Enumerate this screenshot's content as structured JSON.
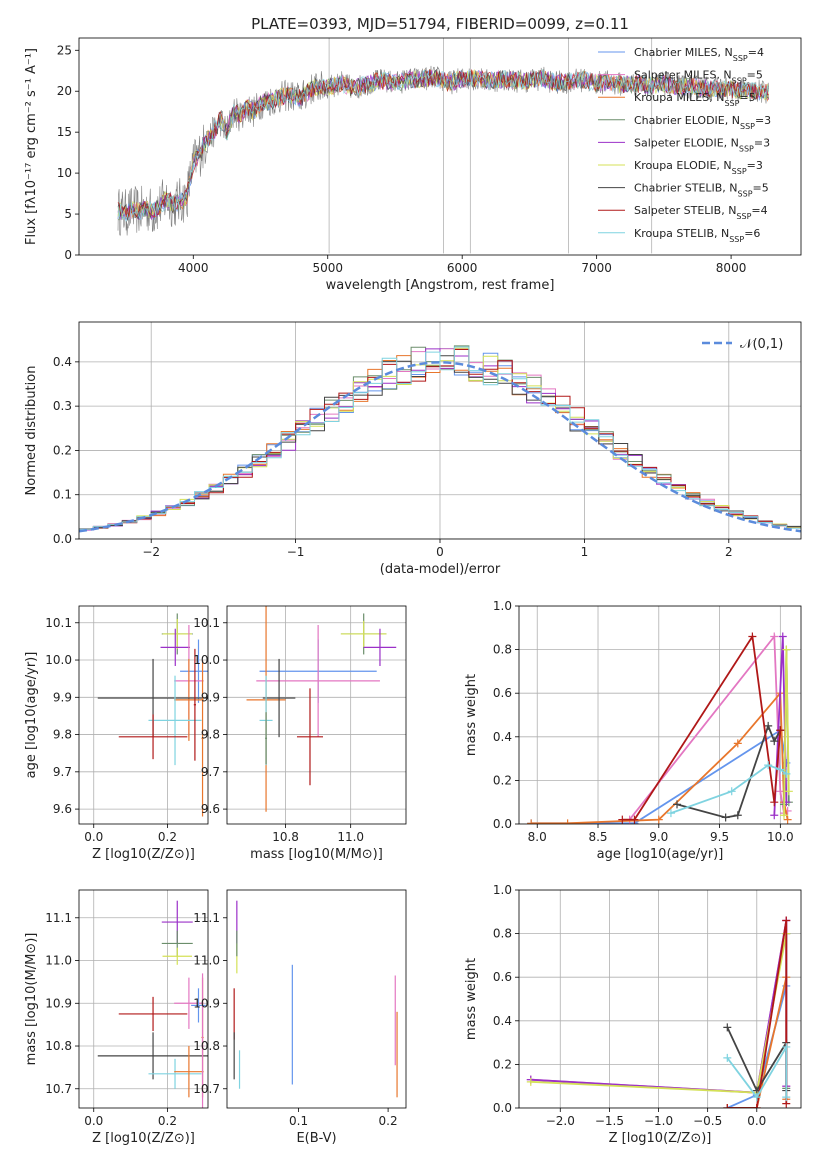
{
  "figure": {
    "title": "PLATE=0393, MJD=51794, FIBERID=0099, z=0.11"
  },
  "chart_data": [
    {
      "id": "spectrum",
      "type": "line",
      "xlabel": "wavelength [Angstrom, rest frame]",
      "ylabel": "Flux [fλ10⁻¹⁷ erg cm⁻² s⁻¹ A⁻¹]",
      "xlim": [
        3150,
        8520
      ],
      "ylim": [
        0,
        26.5
      ],
      "xticks": [
        4000,
        5000,
        6000,
        7000,
        8000
      ],
      "yticks": [
        0,
        5,
        10,
        15,
        20,
        25
      ],
      "grid": false,
      "legend_position": "right",
      "observed": {
        "x": [
          3440,
          3500,
          3550,
          3600,
          3650,
          3700,
          3750,
          3800,
          3850,
          3900,
          3950,
          4000,
          4050,
          4100,
          4150,
          4200,
          4250,
          4300,
          4350,
          4400,
          4450,
          4500,
          4600,
          4700,
          4800,
          4900,
          5000,
          5100,
          5200,
          5300,
          5400,
          5500,
          5600,
          5700,
          5800,
          5900,
          6000,
          6100,
          6200,
          6300,
          6400,
          6500,
          6600,
          6700,
          6800,
          6900,
          7000,
          7100,
          7200,
          7300,
          7400,
          7500,
          7600,
          7700,
          7800,
          7900,
          8000,
          8100,
          8200,
          8280
        ],
        "y": [
          5.4,
          5.1,
          5.6,
          5.3,
          5.8,
          5.2,
          6.0,
          6.8,
          6.2,
          6.5,
          7.0,
          11.2,
          12.5,
          14.0,
          15.0,
          16.5,
          15.0,
          17.5,
          17.0,
          18.0,
          17.5,
          18.5,
          19.0,
          19.5,
          19.2,
          20.5,
          20.5,
          21.0,
          20.3,
          21.0,
          21.3,
          21.0,
          21.4,
          21.5,
          21.7,
          21.0,
          21.5,
          21.6,
          21.2,
          21.5,
          21.3,
          21.3,
          21.6,
          21.0,
          21.2,
          21.4,
          21.0,
          21.1,
          20.8,
          20.9,
          20.7,
          20.9,
          20.5,
          20.6,
          20.4,
          20.3,
          20.2,
          20.0,
          20.0,
          19.8
        ]
      },
      "series": [
        {
          "name": "Chabrier MILES, N_SSP=4",
          "color": "#6495ed"
        },
        {
          "name": "Salpeter MILES, N_SSP=5",
          "color": "#e377c2"
        },
        {
          "name": "Kroupa MILES, N_SSP=5",
          "color": "#e8762c"
        },
        {
          "name": "Chabrier ELODIE, N_SSP=3",
          "color": "#6b8e6b"
        },
        {
          "name": "Salpeter ELODIE, N_SSP=3",
          "color": "#9b30c8"
        },
        {
          "name": "Kroupa ELODIE, N_SSP=3",
          "color": "#d4e157"
        },
        {
          "name": "Chabrier STELIB, N_SSP=5",
          "color": "#444444"
        },
        {
          "name": "Salpeter STELIB, N_SSP=4",
          "color": "#b01818"
        },
        {
          "name": "Kroupa STELIB, N_SSP=6",
          "color": "#7fd3e0"
        }
      ]
    },
    {
      "id": "residuals",
      "type": "line",
      "xlabel": "(data-model)/error",
      "ylabel": "Normed distribution",
      "xlim": [
        -2.5,
        2.5
      ],
      "ylim": [
        0,
        0.49
      ],
      "xticks": [
        -2,
        -1,
        0,
        1,
        2
      ],
      "yticks": [
        0.0,
        0.1,
        0.2,
        0.3,
        0.4
      ],
      "grid": true,
      "legend_position": "top-right",
      "reference": {
        "name": "𝒩(0,1)",
        "color": "#5b8bdc"
      },
      "bin_width": 0.1
    },
    {
      "id": "age-vs-Z",
      "type": "scatter",
      "xlabel": "Z [log10(Z/Z⊙)]",
      "ylabel": "age [log10(age/yr)]",
      "xlim": [
        -0.04,
        0.31
      ],
      "ylim": [
        9.56,
        10.145
      ],
      "xticks": [
        0.0,
        0.2
      ],
      "yticks": [
        9.6,
        9.7,
        9.8,
        9.9,
        10.0,
        10.1
      ],
      "grid": true,
      "points": [
        {
          "x": 0.2266,
          "y": 10.07,
          "xerr": 0.042,
          "yerr": 0.055,
          "color": "#6b8e6b"
        },
        {
          "x": 0.2266,
          "y": 10.07,
          "xerr": 0.04,
          "yerr": 0.04,
          "color": "#d4e157"
        },
        {
          "x": 0.2212,
          "y": 10.034,
          "xerr": 0.04,
          "yerr": 0.05,
          "color": "#9b30c8"
        },
        {
          "x": 0.2842,
          "y": 9.97,
          "xerr": 0.05,
          "yerr": 0.085,
          "color": "#6495ed"
        },
        {
          "x": 0.2582,
          "y": 9.944,
          "xerr": 0.04,
          "yerr": 0.15,
          "color": "#e377c2"
        },
        {
          "x": 0.2582,
          "y": 9.893,
          "xerr": 0.04,
          "yerr": 0.11,
          "color": "#e8762c"
        },
        {
          "x": 0.1609,
          "y": 9.898,
          "xerr": 0.15,
          "yerr": 0.105,
          "color": "#444444"
        },
        {
          "x": 0.2205,
          "y": 9.838,
          "xerr": 0.072,
          "yerr": 0.12,
          "color": "#7fd3e0"
        },
        {
          "x": 0.1609,
          "y": 9.794,
          "xerr": 0.093,
          "yerr": 0.06,
          "color": "#b01818"
        },
        {
          "x": 0.2952,
          "y": 9.79,
          "xerr": 0.003,
          "yerr": 0.21,
          "color": "#e8762c"
        },
        {
          "x": 0.2745,
          "y": 9.88,
          "xerr": 0.003,
          "yerr": 0.15,
          "color": "#b01818"
        }
      ]
    },
    {
      "id": "age-vs-mass",
      "type": "scatter",
      "xlabel": "mass [log10(M/M⊙)]",
      "ylabel": "",
      "xlim": [
        10.62,
        11.17
      ],
      "ylim": [
        9.56,
        10.145
      ],
      "xticks": [
        10.8,
        11.0
      ],
      "yticks": [
        9.6,
        9.7,
        9.8,
        9.9,
        10.0,
        10.1
      ],
      "grid": true,
      "points": [
        {
          "x": 11.04,
          "y": 10.07,
          "xerr": 0.07,
          "yerr": 0.055,
          "color": "#6b8e6b"
        },
        {
          "x": 11.04,
          "y": 10.07,
          "xerr": 0.07,
          "yerr": 0.035,
          "color": "#d4e157"
        },
        {
          "x": 11.09,
          "y": 10.034,
          "xerr": 0.05,
          "yerr": 0.05,
          "color": "#9b30c8"
        },
        {
          "x": 10.9,
          "y": 9.97,
          "xerr": 0.18,
          "yerr": 0.085,
          "color": "#6495ed"
        },
        {
          "x": 10.9,
          "y": 9.944,
          "xerr": 0.19,
          "yerr": 0.15,
          "color": "#e377c2"
        },
        {
          "x": 10.74,
          "y": 9.893,
          "xerr": 0.06,
          "yerr": 0.3,
          "color": "#e8762c"
        },
        {
          "x": 10.78,
          "y": 9.898,
          "xerr": 0.05,
          "yerr": 0.105,
          "color": "#444444"
        },
        {
          "x": 10.74,
          "y": 9.838,
          "xerr": 0.02,
          "yerr": 0.12,
          "color": "#7fd3e0"
        },
        {
          "x": 10.875,
          "y": 9.794,
          "xerr": 0.04,
          "yerr": 0.13,
          "color": "#b01818"
        },
        {
          "x": 10.74,
          "y": 9.79,
          "xerr": 0.003,
          "yerr": 0.07,
          "color": "#6b8e6b"
        }
      ]
    },
    {
      "id": "massweight-vs-age",
      "type": "line",
      "xlabel": "age [log10(age/yr)]",
      "ylabel": "mass weight",
      "xlim": [
        7.85,
        10.17
      ],
      "ylim": [
        0,
        1.0
      ],
      "xticks": [
        8.0,
        8.5,
        9.0,
        9.5,
        10.0
      ],
      "yticks": [
        0.0,
        0.2,
        0.4,
        0.6,
        0.8,
        1.0
      ],
      "grid": true,
      "series": [
        {
          "color": "#6495ed",
          "x": [
            7.95,
            8.8,
            10.0,
            10.05
          ],
          "y": [
            0.003,
            0.003,
            0.43,
            0.28
          ]
        },
        {
          "color": "#e377c2",
          "x": [
            8.76,
            9.95,
            10.0,
            10.03,
            10.06
          ],
          "y": [
            0.02,
            0.86,
            0.15,
            0.05,
            0.06
          ]
        },
        {
          "color": "#e8762c",
          "x": [
            7.95,
            8.25,
            9.0,
            9.65,
            10.0,
            10.03,
            10.06
          ],
          "y": [
            0.003,
            0.003,
            0.02,
            0.37,
            0.6,
            0.1,
            0.02
          ]
        },
        {
          "color": "#6b8e6b",
          "x": [
            10.03,
            10.05,
            10.07
          ],
          "y": [
            0.09,
            0.8,
            0.1
          ]
        },
        {
          "color": "#9b30c8",
          "x": [
            9.95,
            10.02,
            10.05
          ],
          "y": [
            0.04,
            0.86,
            0.1
          ]
        },
        {
          "color": "#d4e157",
          "x": [
            10.03,
            10.05,
            10.07
          ],
          "y": [
            0.04,
            0.8,
            0.15
          ]
        },
        {
          "color": "#444444",
          "x": [
            9.15,
            9.55,
            9.65,
            9.9,
            9.95,
            10.0
          ],
          "y": [
            0.09,
            0.03,
            0.04,
            0.45,
            0.38,
            0.43
          ]
        },
        {
          "color": "#b01818",
          "x": [
            8.7,
            8.8,
            9.77,
            9.95,
            10.0
          ],
          "y": [
            0.02,
            0.02,
            0.86,
            0.1,
            0.43
          ]
        },
        {
          "color": "#7fd3e0",
          "x": [
            9.1,
            9.6,
            9.9,
            10.0,
            10.05
          ],
          "y": [
            0.05,
            0.15,
            0.27,
            0.25,
            0.23
          ]
        }
      ]
    },
    {
      "id": "mass-vs-Z",
      "type": "scatter",
      "xlabel": "Z [log10(Z/Z⊙)]",
      "ylabel": "mass [log10(M/M⊙)]",
      "xlim": [
        -0.04,
        0.31
      ],
      "ylim": [
        10.655,
        11.165
      ],
      "xticks": [
        0.0,
        0.2
      ],
      "yticks": [
        10.7,
        10.8,
        10.9,
        11.0,
        11.1
      ],
      "grid": true,
      "points": [
        {
          "x": 0.2266,
          "y": 11.09,
          "xerr": 0.042,
          "yerr": 0.05,
          "color": "#9b30c8"
        },
        {
          "x": 0.2266,
          "y": 11.04,
          "xerr": 0.042,
          "yerr": 0.03,
          "color": "#6b8e6b"
        },
        {
          "x": 0.2266,
          "y": 11.01,
          "xerr": 0.04,
          "yerr": 0.02,
          "color": "#d4e157"
        },
        {
          "x": 0.2582,
          "y": 10.9,
          "xerr": 0.04,
          "yerr": 0.06,
          "color": "#e377c2"
        },
        {
          "x": 0.2842,
          "y": 10.895,
          "xerr": 0.02,
          "yerr": 0.04,
          "color": "#6495ed"
        },
        {
          "x": 0.1609,
          "y": 10.875,
          "xerr": 0.093,
          "yerr": 0.04,
          "color": "#b01818"
        },
        {
          "x": 0.1609,
          "y": 10.777,
          "xerr": 0.15,
          "yerr": 0.055,
          "color": "#444444"
        },
        {
          "x": 0.2205,
          "y": 10.735,
          "xerr": 0.072,
          "yerr": 0.035,
          "color": "#7fd3e0"
        },
        {
          "x": 0.2582,
          "y": 10.74,
          "xerr": 0.04,
          "yerr": 0.06,
          "color": "#e8762c"
        },
        {
          "x": 0.2952,
          "y": 10.82,
          "xerr": 0.003,
          "yerr": 0.14,
          "color": "#e8762c"
        },
        {
          "x": 0.2952,
          "y": 10.8,
          "xerr": 0.003,
          "yerr": 0.17,
          "color": "#e377c2"
        }
      ]
    },
    {
      "id": "mass-vs-ebv",
      "type": "scatter",
      "xlabel": "E(B-V)",
      "ylabel": "",
      "xlim": [
        0.02,
        0.22
      ],
      "ylim": [
        10.655,
        11.165
      ],
      "xticks": [
        0.1,
        0.2
      ],
      "yticks": [
        10.7,
        10.8,
        10.9,
        11.0,
        11.1
      ],
      "grid": false,
      "points": [
        {
          "x": 0.031,
          "y": 11.09,
          "xerr": 0,
          "yerr": 0.05,
          "color": "#9b30c8"
        },
        {
          "x": 0.031,
          "y": 11.005,
          "xerr": 0,
          "yerr": 0.035,
          "color": "#d4e157"
        },
        {
          "x": 0.031,
          "y": 11.04,
          "xerr": 0,
          "yerr": 0.03,
          "color": "#6b8e6b"
        },
        {
          "x": 0.028,
          "y": 10.875,
          "xerr": 0,
          "yerr": 0.06,
          "color": "#b01818"
        },
        {
          "x": 0.028,
          "y": 10.777,
          "xerr": 0,
          "yerr": 0.055,
          "color": "#444444"
        },
        {
          "x": 0.034,
          "y": 10.745,
          "xerr": 0,
          "yerr": 0.045,
          "color": "#7fd3e0"
        },
        {
          "x": 0.093,
          "y": 10.85,
          "xerr": 0,
          "yerr": 0.14,
          "color": "#6495ed"
        },
        {
          "x": 0.208,
          "y": 10.86,
          "xerr": 0,
          "yerr": 0.105,
          "color": "#e377c2"
        },
        {
          "x": 0.21,
          "y": 10.78,
          "xerr": 0,
          "yerr": 0.1,
          "color": "#e8762c"
        }
      ]
    },
    {
      "id": "massweight-vs-Z",
      "type": "line",
      "xlabel": "Z [log10(Z/Z⊙)]",
      "ylabel": "mass weight",
      "xlim": [
        -2.42,
        0.45
      ],
      "ylim": [
        0,
        1.0
      ],
      "xticks": [
        -2.0,
        -1.5,
        -1.0,
        -0.5,
        0.0
      ],
      "yticks": [
        0.0,
        0.2,
        0.4,
        0.6,
        0.8,
        1.0
      ],
      "grid": true,
      "series": [
        {
          "color": "#6495ed",
          "x": [
            -0.3,
            0.0,
            0.3
          ],
          "y": [
            0.0,
            0.06,
            0.56
          ]
        },
        {
          "color": "#e377c2",
          "x": [
            -2.3,
            0.0,
            0.3,
            0.3
          ],
          "y": [
            0.13,
            0.07,
            0.86,
            0.1
          ]
        },
        {
          "color": "#e8762c",
          "x": [
            -0.3,
            0.0,
            0.3,
            0.3
          ],
          "y": [
            0.0,
            0.0,
            0.6,
            0.04
          ]
        },
        {
          "color": "#6b8e6b",
          "x": [
            0.3,
            0.3
          ],
          "y": [
            0.8,
            0.09
          ]
        },
        {
          "color": "#9b30c8",
          "x": [
            -2.3,
            0.0,
            0.3,
            0.3
          ],
          "y": [
            0.13,
            0.07,
            0.86,
            0.1
          ]
        },
        {
          "color": "#d4e157",
          "x": [
            -2.3,
            0.0,
            0.3
          ],
          "y": [
            0.12,
            0.07,
            0.8
          ]
        },
        {
          "color": "#444444",
          "x": [
            -0.3,
            0.0,
            0.3,
            0.3
          ],
          "y": [
            0.37,
            0.08,
            0.3,
            0.08
          ]
        },
        {
          "color": "#b01818",
          "x": [
            -0.3,
            0.0,
            0.3,
            0.3
          ],
          "y": [
            0.0,
            0.0,
            0.86,
            0.02
          ]
        },
        {
          "color": "#7fd3e0",
          "x": [
            -0.3,
            0.0,
            0.3,
            0.3
          ],
          "y": [
            0.23,
            0.05,
            0.28,
            0.05
          ]
        }
      ]
    }
  ]
}
